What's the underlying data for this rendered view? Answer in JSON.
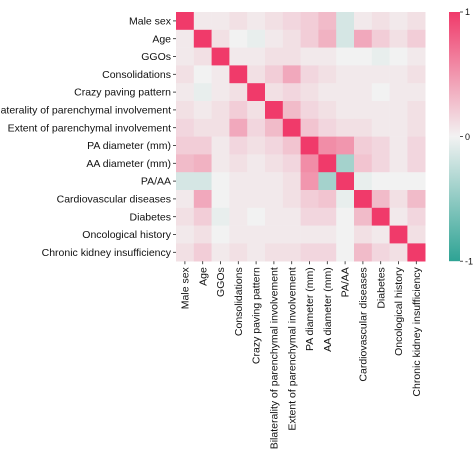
{
  "chart_data": {
    "type": "heatmap",
    "title": "",
    "xlabel": "",
    "ylabel": "",
    "rows": [
      "Male sex",
      "Age",
      "GGOs",
      "Consolidations",
      "Crazy paving pattern",
      "Bilaterality of parenchymal involvement",
      "Extent of parenchymal involvement",
      "PA diameter (mm)",
      "AA diameter (mm)",
      "PA/AA",
      "Cardiovascular diseases",
      "Diabetes",
      "Oncological history",
      "Chronic kidney insufficiency"
    ],
    "columns": [
      "Male sex",
      "Age",
      "GGOs",
      "Consolidations",
      "Crazy paving pattern",
      "Bilaterality of parenchymal involvement",
      "Extent of parenchymal involvement",
      "PA diameter (mm)",
      "AA diameter (mm)",
      "PA/AA",
      "Cardiovascular diseases",
      "Diabetes",
      "Oncological history",
      "Chronic kidney insufficiency"
    ],
    "values": [
      [
        1.0,
        0.05,
        0.05,
        0.1,
        0.05,
        0.1,
        0.15,
        0.2,
        0.3,
        -0.15,
        0.05,
        0.1,
        0.05,
        0.1
      ],
      [
        0.05,
        1.0,
        0.1,
        0.0,
        -0.05,
        0.05,
        0.1,
        0.2,
        0.35,
        -0.15,
        0.4,
        0.2,
        0.1,
        0.2
      ],
      [
        0.05,
        0.1,
        1.0,
        0.05,
        0.05,
        0.1,
        0.1,
        0.05,
        0.05,
        0.0,
        0.0,
        -0.05,
        0.0,
        0.05
      ],
      [
        0.1,
        0.0,
        0.05,
        1.0,
        0.1,
        0.2,
        0.4,
        0.15,
        0.1,
        0.05,
        0.05,
        0.05,
        0.05,
        0.1
      ],
      [
        0.05,
        -0.05,
        0.05,
        0.1,
        1.0,
        0.1,
        0.15,
        0.1,
        0.05,
        0.05,
        0.05,
        0.0,
        0.05,
        0.05
      ],
      [
        0.1,
        0.05,
        0.1,
        0.2,
        0.1,
        1.0,
        0.3,
        0.15,
        0.1,
        0.05,
        0.05,
        0.05,
        0.05,
        0.1
      ],
      [
        0.15,
        0.1,
        0.1,
        0.4,
        0.15,
        0.3,
        1.0,
        0.25,
        0.15,
        0.1,
        0.1,
        0.05,
        0.05,
        0.1
      ],
      [
        0.2,
        0.2,
        0.05,
        0.15,
        0.1,
        0.15,
        0.25,
        1.0,
        0.55,
        0.5,
        0.2,
        0.15,
        0.05,
        0.15
      ],
      [
        0.3,
        0.35,
        0.05,
        0.1,
        0.05,
        0.1,
        0.15,
        0.55,
        1.0,
        -0.4,
        0.25,
        0.15,
        0.05,
        0.15
      ],
      [
        -0.15,
        -0.15,
        0.0,
        0.05,
        0.05,
        0.05,
        0.1,
        0.5,
        -0.4,
        1.0,
        -0.05,
        0.0,
        0.0,
        0.0
      ],
      [
        0.05,
        0.4,
        0.0,
        0.05,
        0.05,
        0.05,
        0.1,
        0.2,
        0.25,
        -0.05,
        1.0,
        0.3,
        0.1,
        0.3
      ],
      [
        0.1,
        0.2,
        -0.05,
        0.05,
        0.0,
        0.05,
        0.05,
        0.15,
        0.15,
        0.0,
        0.3,
        1.0,
        0.05,
        0.15
      ],
      [
        0.05,
        0.1,
        0.0,
        0.05,
        0.05,
        0.05,
        0.05,
        0.05,
        0.05,
        0.0,
        0.1,
        0.05,
        1.0,
        0.1
      ],
      [
        0.1,
        0.2,
        0.05,
        0.1,
        0.05,
        0.1,
        0.1,
        0.15,
        0.15,
        0.0,
        0.3,
        0.15,
        0.1,
        1.0
      ]
    ],
    "colorbar": {
      "range": [
        -1,
        1
      ],
      "ticks": [
        1,
        0,
        -1
      ],
      "tick_labels": [
        "1",
        "0",
        "-1"
      ],
      "low_color": "#2ea394",
      "mid_color": "#f2f2f2",
      "high_color": "#f03a6a"
    }
  }
}
